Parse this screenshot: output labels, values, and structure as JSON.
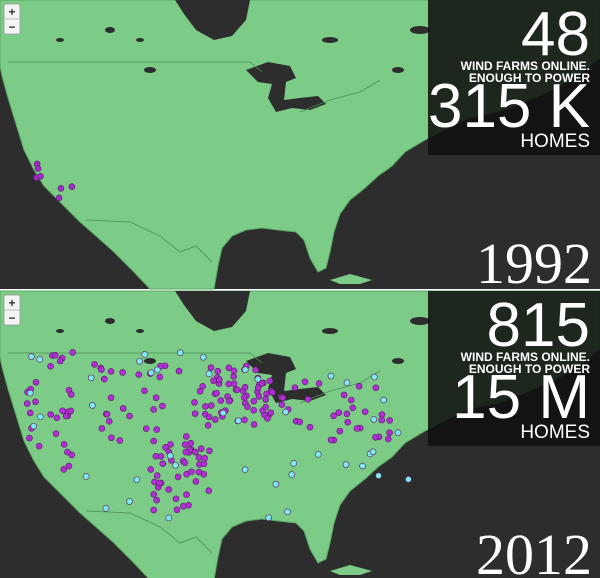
{
  "panels": [
    {
      "zoom_in": "+",
      "zoom_out": "−",
      "count": 48,
      "caption_lines": [
        "WIND FARMS ONLINE.",
        "ENOUGH TO POWER"
      ],
      "homes": "315 K",
      "homes_label": "HOMES",
      "year": "1992"
    },
    {
      "zoom_in": "+",
      "zoom_out": "−",
      "count": 815,
      "caption_lines": [
        "WIND FARMS ONLINE.",
        "ENOUGH TO POWER"
      ],
      "homes": "15 M",
      "homes_label": "HOMES",
      "year": "2012"
    }
  ]
}
